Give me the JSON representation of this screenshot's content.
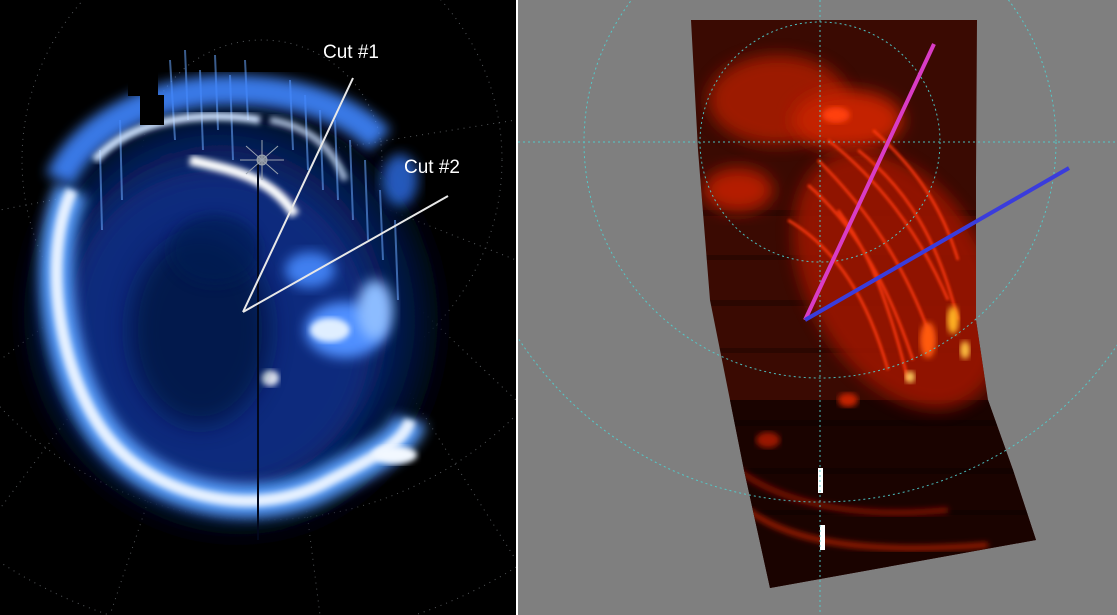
{
  "left_panel": {
    "labels": [
      {
        "text": "Cut #1"
      },
      {
        "text": "Cut #2"
      }
    ],
    "colors": {
      "background": "#000000",
      "aurora": "#5a9cff",
      "aurora_bright": "#eef6ff",
      "cut_lines": "#e8e8e8"
    }
  },
  "right_panel": {
    "colors": {
      "background": "#7f7f7f",
      "emission": "#ff2a00",
      "grid": "#4fd1d1",
      "cut1": "#d93cc5",
      "cut2": "#3a3cdc"
    }
  }
}
